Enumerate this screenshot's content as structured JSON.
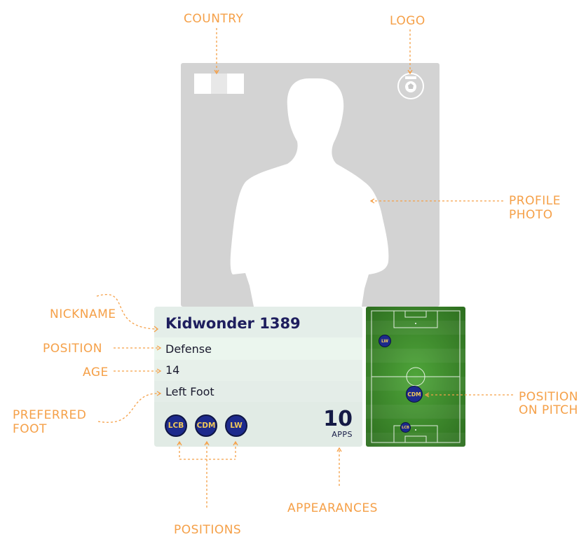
{
  "annotations": {
    "country": "COUNTRY",
    "logo": "LOGO",
    "profile_photo": [
      "PROFILE",
      "PHOTO"
    ],
    "nickname": "NICKNAME",
    "position": "POSITION",
    "age": "AGE",
    "preferred_foot": [
      "PREFERRED",
      "FOOT"
    ],
    "position_on_pitch": [
      "POSITION",
      "ON PITCH"
    ],
    "appearances": "APPEARANCES",
    "positions": "POSITIONS"
  },
  "player": {
    "nickname": "Kidwonder 1389",
    "position": "Defense",
    "age": "14",
    "preferred_foot": "Left Foot",
    "positions": [
      "LCB",
      "CDM",
      "LW"
    ],
    "appearances": "10",
    "appearances_label": "APPS"
  },
  "pitch": {
    "markers": [
      "LW",
      "CDM",
      "LCB"
    ],
    "primary": "CDM"
  },
  "flag_colors": [
    "#ffffff",
    "#e8e8e8",
    "#ffffff"
  ],
  "colors": {
    "annotation": "#f5a048",
    "chip": "#1d2a8c",
    "chip_text": "#f0c85a",
    "pitch_green": "#3f8f2a"
  }
}
